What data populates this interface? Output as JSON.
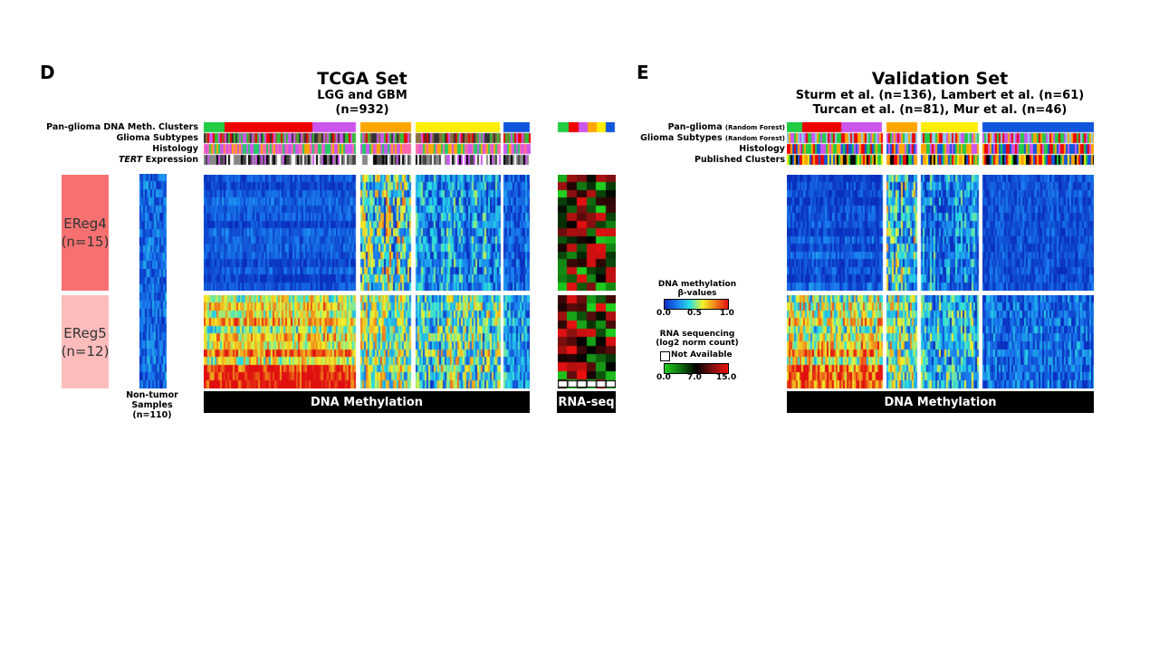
{
  "panel_d": {
    "letter": "D",
    "title": "TCGA Set",
    "subtitle_1": "LGG and GBM",
    "subtitle_2": "(n=932)",
    "tracks": [
      "Pan-glioma DNA Meth. Clusters",
      "Glioma Subtypes",
      "Histology",
      "Expression"
    ],
    "track_italic_prefix": "TERT",
    "ereg4": {
      "name": "EReg4",
      "count": "(n=15)"
    },
    "ereg5": {
      "name": "EReg5",
      "count": "(n=12)"
    },
    "normal_label": [
      "Non-tumor",
      "Samples",
      "(n=110)"
    ],
    "dna_bar": "DNA Methylation",
    "rna_bar": "RNA-seq"
  },
  "panel_e": {
    "letter": "E",
    "title": "Validation Set",
    "subtitle_1": "Sturm et al. (n=136), Lambert et al. (n=61)",
    "subtitle_2": "Turcan et al. (n=81), Mur et al. (n=46)",
    "tracks": [
      {
        "main": "Pan-glioma",
        "small": "(Random Forest)"
      },
      {
        "main": "Glioma Subtypes",
        "small": "(Random Forest)"
      },
      {
        "main": "Histology",
        "small": ""
      },
      {
        "main": "Published Clusters",
        "small": ""
      }
    ],
    "dna_bar": "DNA Methylation"
  },
  "legend": {
    "meth_title_1": "DNA methylation",
    "meth_title_2": "β-values",
    "meth_ticks": [
      "0.0",
      "0.5",
      "1.0"
    ],
    "rna_title_1": "RNA sequencing",
    "rna_title_2": "(log2 norm count)",
    "na_label": "Not Available",
    "rna_ticks": [
      "0.0",
      "7.0",
      "15.0"
    ]
  },
  "colors": {
    "ereg4_box": "#f87171",
    "ereg5_box": "#fcbcbc",
    "cluster_green": "#22cc44",
    "cluster_red": "#ee0000",
    "cluster_purple": "#cc55ee",
    "cluster_orange": "#ffa500",
    "cluster_yellow": "#ffee00",
    "cluster_blue": "#1155dd"
  }
}
